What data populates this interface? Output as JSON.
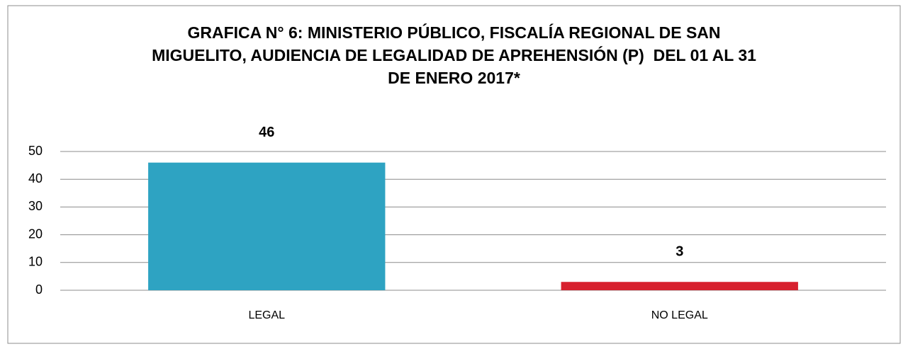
{
  "chart_data": {
    "type": "bar",
    "title": "GRAFICA N° 6: MINISTERIO PÚBLICO, FISCALÍA REGIONAL DE SAN\nMIGUELITO, AUDIENCIA DE LEGALIDAD DE APREHENSIÓN (P)  DEL 01 AL 31\nDE ENERO 2017*",
    "categories": [
      "LEGAL",
      "NO LEGAL"
    ],
    "values": [
      46,
      3
    ],
    "colors": [
      "#2ea3c2",
      "#d7202e"
    ],
    "ylim": [
      0,
      50
    ],
    "yticks": [
      0,
      10,
      20,
      30,
      40,
      50
    ],
    "grid": true
  }
}
